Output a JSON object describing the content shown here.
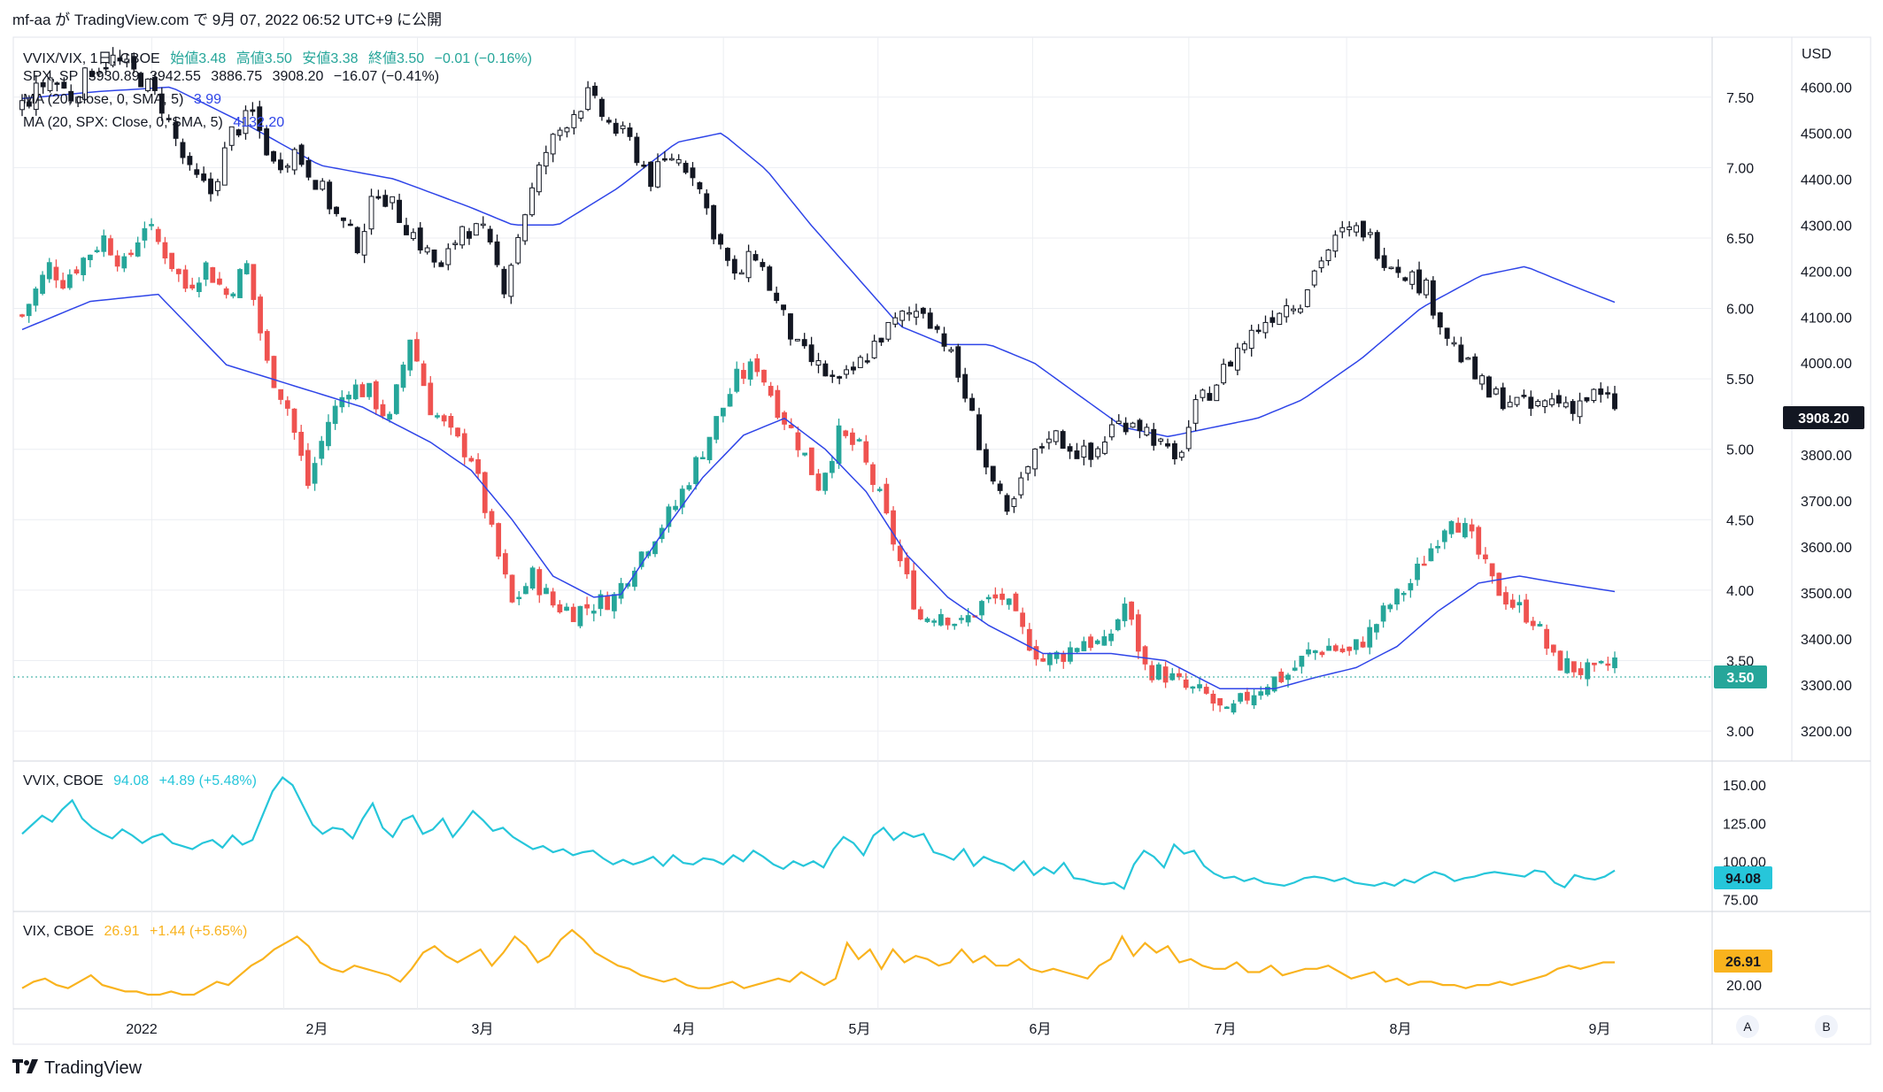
{
  "header": {
    "text": "mf-aa が TradingView.com で 9月 07, 2022 06:52 UTC+9 に公開"
  },
  "legend": {
    "main": [
      "VVIX/VIX, 1日, CBOE",
      "始値3.48",
      "高値3.50",
      "安値3.38",
      "終値3.50",
      "−0.01 (−0.16%)"
    ],
    "spx": [
      "SPX, SP",
      "3930.89",
      "3942.55",
      "3886.75",
      "3908.20",
      "−16.07 (−0.41%)"
    ],
    "ma1": [
      "MA (20, close, 0, SMA, 5)",
      "3.99"
    ],
    "ma2": [
      "MA (20, SPX: Close, 0, SMA, 5)",
      "4132.20"
    ],
    "vvix": [
      "VVIX, CBOE",
      "94.08",
      "+4.89 (+5.48%)"
    ],
    "vix": [
      "VIX, CBOE",
      "26.91",
      "+1.44 (+5.65%)"
    ]
  },
  "axes": {
    "ratio_ticks": [
      "7.50",
      "7.00",
      "6.50",
      "6.00",
      "5.50",
      "5.00",
      "4.50",
      "4.00",
      "3.50",
      "3.00"
    ],
    "spx_ticks": [
      "USD",
      "4600.00",
      "4500.00",
      "4400.00",
      "4300.00",
      "4200.00",
      "4100.00",
      "4000.00",
      "3800.00",
      "3700.00",
      "3600.00",
      "3500.00",
      "3400.00",
      "3300.00",
      "3200.00"
    ],
    "vvix_ticks": [
      "150.00",
      "125.00",
      "100.00",
      "75.00"
    ],
    "vix_ticks": [
      "20.00"
    ],
    "x_ticks": [
      "2022",
      "2月",
      "3月",
      "4月",
      "5月",
      "6月",
      "7月",
      "8月",
      "9月"
    ],
    "current_ratio": "3.50",
    "current_spx": "3908.20",
    "current_vvix": "94.08",
    "current_vix": "26.91",
    "scale_buttons": [
      "A",
      "B"
    ]
  },
  "footer": {
    "logo_text": "TradingView"
  },
  "colors": {
    "up": "#26a69a",
    "down": "#ef5350",
    "spx_candle": "#131722",
    "ma": "#2f45e8",
    "vvix": "#26c6da",
    "vix": "#f9b31e",
    "grid": "#eceef2"
  },
  "chart_data": [
    {
      "type": "candlestick",
      "title": "VVIX/VIX, 1日, CBOE",
      "x_range": [
        "2021-12-14",
        "2022-09-06"
      ],
      "ylim": [
        2.9,
        7.8
      ],
      "close_path": [
        [
          0,
          5.95
        ],
        [
          4,
          6.3
        ],
        [
          6,
          6.2
        ],
        [
          9,
          6.35
        ],
        [
          12,
          6.5
        ],
        [
          15,
          6.3
        ],
        [
          18,
          6.6
        ],
        [
          21,
          6.4
        ],
        [
          24,
          6.15
        ],
        [
          27,
          6.3
        ],
        [
          30,
          6.1
        ],
        [
          33,
          6.3
        ],
        [
          36,
          5.6
        ],
        [
          39,
          5.3
        ],
        [
          42,
          4.75
        ],
        [
          45,
          5.2
        ],
        [
          48,
          5.45
        ],
        [
          51,
          5.4
        ],
        [
          54,
          5.2
        ],
        [
          57,
          5.8
        ],
        [
          60,
          5.3
        ],
        [
          63,
          5.1
        ],
        [
          66,
          4.95
        ],
        [
          69,
          4.4
        ],
        [
          72,
          3.9
        ],
        [
          75,
          4.1
        ],
        [
          78,
          3.9
        ],
        [
          81,
          3.85
        ],
        [
          84,
          3.9
        ],
        [
          87,
          3.95
        ],
        [
          90,
          4.2
        ],
        [
          93,
          4.4
        ],
        [
          96,
          4.6
        ],
        [
          99,
          4.9
        ],
        [
          102,
          5.2
        ],
        [
          105,
          5.5
        ],
        [
          108,
          5.6
        ],
        [
          111,
          5.3
        ],
        [
          114,
          5.05
        ],
        [
          117,
          4.75
        ],
        [
          120,
          5.1
        ],
        [
          123,
          5.0
        ],
        [
          126,
          4.65
        ],
        [
          129,
          4.2
        ],
        [
          132,
          3.8
        ],
        [
          135,
          3.85
        ],
        [
          138,
          3.75
        ],
        [
          141,
          3.9
        ],
        [
          144,
          3.95
        ],
        [
          147,
          3.7
        ],
        [
          150,
          3.5
        ],
        [
          153,
          3.55
        ],
        [
          156,
          3.65
        ],
        [
          159,
          3.6
        ],
        [
          162,
          3.9
        ],
        [
          165,
          3.45
        ],
        [
          168,
          3.4
        ],
        [
          171,
          3.3
        ],
        [
          174,
          3.25
        ],
        [
          177,
          3.1
        ],
        [
          180,
          3.25
        ],
        [
          183,
          3.35
        ],
        [
          186,
          3.4
        ],
        [
          189,
          3.55
        ],
        [
          192,
          3.6
        ],
        [
          195,
          3.55
        ],
        [
          198,
          3.7
        ],
        [
          201,
          3.9
        ],
        [
          204,
          4.05
        ],
        [
          207,
          4.3
        ],
        [
          210,
          4.55
        ],
        [
          213,
          4.35
        ],
        [
          216,
          4.05
        ],
        [
          219,
          3.9
        ],
        [
          222,
          3.8
        ],
        [
          225,
          3.5
        ],
        [
          228,
          3.45
        ],
        [
          231,
          3.4
        ],
        [
          234,
          3.5
        ]
      ],
      "ma_path": [
        [
          0,
          5.85
        ],
        [
          10,
          6.05
        ],
        [
          20,
          6.1
        ],
        [
          30,
          5.6
        ],
        [
          40,
          5.45
        ],
        [
          50,
          5.3
        ],
        [
          60,
          5.05
        ],
        [
          66,
          4.85
        ],
        [
          72,
          4.5
        ],
        [
          78,
          4.1
        ],
        [
          84,
          3.95
        ],
        [
          88,
          3.97
        ],
        [
          94,
          4.4
        ],
        [
          100,
          4.8
        ],
        [
          106,
          5.1
        ],
        [
          112,
          5.22
        ],
        [
          118,
          5.0
        ],
        [
          124,
          4.7
        ],
        [
          130,
          4.25
        ],
        [
          136,
          3.95
        ],
        [
          142,
          3.75
        ],
        [
          150,
          3.55
        ],
        [
          160,
          3.55
        ],
        [
          168,
          3.5
        ],
        [
          176,
          3.3
        ],
        [
          184,
          3.3
        ],
        [
          190,
          3.38
        ],
        [
          196,
          3.45
        ],
        [
          202,
          3.6
        ],
        [
          208,
          3.85
        ],
        [
          214,
          4.05
        ],
        [
          220,
          4.1
        ],
        [
          226,
          4.05
        ],
        [
          234,
          3.99
        ]
      ]
    },
    {
      "type": "candlestick",
      "title": "SPX, SP",
      "ylim": [
        3150,
        4670
      ],
      "close_path": [
        [
          0,
          4560
        ],
        [
          4,
          4620
        ],
        [
          7,
          4580
        ],
        [
          10,
          4640
        ],
        [
          13,
          4660
        ],
        [
          17,
          4620
        ],
        [
          20,
          4560
        ],
        [
          24,
          4410
        ],
        [
          27,
          4370
        ],
        [
          30,
          4500
        ],
        [
          33,
          4540
        ],
        [
          36,
          4430
        ],
        [
          39,
          4460
        ],
        [
          42,
          4400
        ],
        [
          45,
          4320
        ],
        [
          48,
          4260
        ],
        [
          51,
          4380
        ],
        [
          54,
          4320
        ],
        [
          57,
          4260
        ],
        [
          60,
          4200
        ],
        [
          63,
          4300
        ],
        [
          66,
          4280
        ],
        [
          69,
          4170
        ],
        [
          72,
          4330
        ],
        [
          75,
          4460
        ],
        [
          78,
          4530
        ],
        [
          81,
          4580
        ],
        [
          84,
          4520
        ],
        [
          87,
          4480
        ],
        [
          90,
          4400
        ],
        [
          93,
          4450
        ],
        [
          96,
          4420
        ],
        [
          99,
          4290
        ],
        [
          102,
          4180
        ],
        [
          105,
          4240
        ],
        [
          108,
          4130
        ],
        [
          111,
          4030
        ],
        [
          114,
          3990
        ],
        [
          117,
          3950
        ],
        [
          120,
          4000
        ],
        [
          123,
          4060
        ],
        [
          126,
          4100
        ],
        [
          129,
          4120
        ],
        [
          132,
          4050
        ],
        [
          135,
          3930
        ],
        [
          138,
          3780
        ],
        [
          141,
          3660
        ],
        [
          144,
          3770
        ],
        [
          147,
          3850
        ],
        [
          150,
          3820
        ],
        [
          153,
          3790
        ],
        [
          156,
          3860
        ],
        [
          159,
          3880
        ],
        [
          162,
          3840
        ],
        [
          165,
          3780
        ],
        [
          168,
          3900
        ],
        [
          171,
          3960
        ],
        [
          174,
          4030
        ],
        [
          177,
          4080
        ],
        [
          180,
          4120
        ],
        [
          183,
          4140
        ],
        [
          186,
          4230
        ],
        [
          189,
          4280
        ],
        [
          192,
          4290
        ],
        [
          195,
          4230
        ],
        [
          198,
          4200
        ],
        [
          201,
          4160
        ],
        [
          204,
          4060
        ],
        [
          207,
          3990
        ],
        [
          210,
          3930
        ],
        [
          213,
          3920
        ],
        [
          216,
          3900
        ],
        [
          219,
          3920
        ],
        [
          222,
          3910
        ],
        [
          225,
          3930
        ],
        [
          228,
          3908
        ]
      ],
      "ma_path": [
        [
          0,
          4575
        ],
        [
          10,
          4590
        ],
        [
          20,
          4600
        ],
        [
          30,
          4520
        ],
        [
          40,
          4430
        ],
        [
          50,
          4400
        ],
        [
          60,
          4340
        ],
        [
          66,
          4300
        ],
        [
          72,
          4300
        ],
        [
          80,
          4380
        ],
        [
          88,
          4480
        ],
        [
          94,
          4500
        ],
        [
          100,
          4420
        ],
        [
          106,
          4300
        ],
        [
          112,
          4190
        ],
        [
          118,
          4080
        ],
        [
          124,
          4040
        ],
        [
          130,
          4040
        ],
        [
          136,
          4000
        ],
        [
          142,
          3930
        ],
        [
          148,
          3860
        ],
        [
          154,
          3840
        ],
        [
          160,
          3860
        ],
        [
          166,
          3880
        ],
        [
          172,
          3920
        ],
        [
          180,
          4010
        ],
        [
          188,
          4120
        ],
        [
          196,
          4190
        ],
        [
          202,
          4210
        ],
        [
          208,
          4170
        ],
        [
          214,
          4132
        ]
      ]
    },
    {
      "type": "line",
      "title": "VVIX, CBOE",
      "ylim": [
        70,
        160
      ],
      "series": [
        {
          "name": "VVIX",
          "values": [
            118,
            124,
            130,
            126,
            134,
            140,
            128,
            122,
            118,
            115,
            121,
            117,
            112,
            116,
            118,
            112,
            110,
            108,
            112,
            114,
            109,
            117,
            111,
            114,
            130,
            146,
            155,
            150,
            137,
            124,
            118,
            122,
            121,
            115,
            128,
            138,
            122,
            116,
            127,
            130,
            118,
            121,
            128,
            116,
            124,
            133,
            127,
            120,
            122,
            116,
            112,
            108,
            110,
            106,
            108,
            104,
            106,
            107,
            102,
            98,
            101,
            98,
            100,
            103,
            97,
            104,
            99,
            98,
            102,
            101,
            98,
            104,
            100,
            107,
            103,
            98,
            95,
            100,
            97,
            100,
            96,
            108,
            116,
            112,
            104,
            117,
            122,
            114,
            119,
            116,
            118,
            106,
            104,
            101,
            108,
            97,
            103,
            100,
            98,
            94,
            100,
            91,
            96,
            92,
            99,
            89,
            88,
            86,
            85,
            86,
            82,
            98,
            107,
            103,
            96,
            111,
            105,
            107,
            97,
            92,
            89,
            90,
            87,
            89,
            86,
            85,
            84,
            86,
            89,
            90,
            89,
            87,
            89,
            86,
            85,
            84,
            86,
            84,
            88,
            86,
            90,
            93,
            91,
            87,
            89,
            90,
            92,
            93,
            92,
            91,
            90,
            94,
            93,
            86,
            83,
            91,
            89,
            88,
            90,
            94
          ]
        }
      ]
    },
    {
      "type": "line",
      "title": "VIX, CBOE",
      "ylim": [
        14,
        40
      ],
      "series": [
        {
          "name": "VIX",
          "values": [
            19,
            21,
            22,
            20,
            19,
            21,
            23,
            20,
            19,
            18,
            18,
            17,
            17,
            18,
            17,
            17,
            19,
            21,
            20,
            23,
            26,
            28,
            31,
            33,
            35,
            32,
            27,
            25,
            24,
            26,
            25,
            24,
            23,
            21,
            25,
            30,
            32,
            29,
            27,
            29,
            31,
            26,
            30,
            35,
            32,
            27,
            29,
            34,
            37,
            34,
            30,
            28,
            26,
            25,
            23,
            22,
            21,
            22,
            20,
            19,
            19,
            20,
            21,
            19,
            20,
            21,
            22,
            21,
            24,
            22,
            20,
            22,
            33,
            28,
            31,
            25,
            31,
            27,
            29,
            28,
            26,
            27,
            31,
            27,
            29,
            26,
            26,
            28,
            25,
            24,
            25,
            24,
            23,
            22,
            26,
            28,
            35,
            29,
            33,
            30,
            32,
            27,
            28,
            26,
            25,
            25,
            27,
            24,
            24,
            26,
            23,
            24,
            25,
            25,
            26,
            24,
            22,
            23,
            24,
            21,
            22,
            20,
            21,
            21,
            20,
            20,
            19,
            20,
            20,
            21,
            20,
            21,
            22,
            23,
            25,
            26,
            25,
            26,
            27,
            27
          ]
        }
      ]
    }
  ]
}
